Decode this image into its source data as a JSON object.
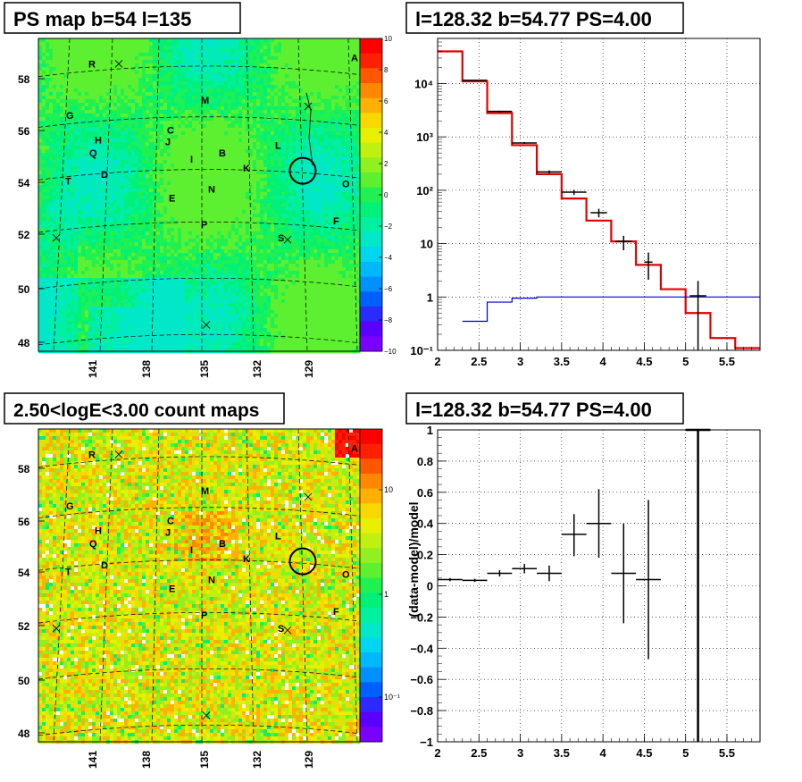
{
  "panels": {
    "ps_map": {
      "title": "PS map b=54 l=135",
      "y_ticks": [
        "58",
        "56",
        "54",
        "52",
        "50",
        "48"
      ],
      "x_ticks": [
        "141",
        "138",
        "135",
        "132",
        "129"
      ],
      "colorbar_ticks": [
        "10",
        "8",
        "6",
        "4",
        "2",
        "0",
        "−2",
        "−4",
        "−6",
        "−8",
        "−10"
      ],
      "colorbar_range": [
        -10,
        10
      ],
      "source_labels": [
        "R",
        "A",
        "M",
        "G",
        "C",
        "H",
        "J",
        "Q",
        "I",
        "B",
        "L",
        "K",
        "D",
        "T",
        "N",
        "O",
        "E",
        "F",
        "P",
        "S"
      ]
    },
    "count_map": {
      "title": "2.50<logE<3.00 count maps",
      "y_ticks": [
        "58",
        "56",
        "54",
        "52",
        "50",
        "48"
      ],
      "x_ticks": [
        "141",
        "138",
        "135",
        "132",
        "129"
      ],
      "colorbar_ticks": [
        "10",
        "1",
        "10⁻¹"
      ],
      "colorbar_scale": "log",
      "source_labels": [
        "R",
        "A",
        "M",
        "G",
        "C",
        "H",
        "J",
        "Q",
        "I",
        "B",
        "L",
        "K",
        "D",
        "T",
        "N",
        "O",
        "E",
        "F",
        "P",
        "S"
      ]
    },
    "spectrum": {
      "title": "l=128.32 b=54.77 PS=4.00"
    },
    "residual": {
      "title": "l=128.32 b=54.77 PS=4.00"
    }
  },
  "chart_data": [
    {
      "type": "heatmap",
      "title": "PS map b=54 l=135",
      "xlabel": "",
      "ylabel": "",
      "x_ticks": [
        141,
        138,
        135,
        132,
        129
      ],
      "y_ticks": [
        58,
        56,
        54,
        52,
        50,
        48
      ],
      "zlim": [
        -10,
        10
      ],
      "colorbar": "rainbow",
      "note_circle": {
        "l": 128.32,
        "b": 54.77
      }
    },
    {
      "type": "line",
      "title": "l=128.32 b=54.77 PS=4.00",
      "xlim": [
        2,
        5.9
      ],
      "ylim": [
        0.1,
        70000
      ],
      "yscale": "log",
      "x_ticks": [
        2,
        2.5,
        3,
        3.5,
        4,
        4.5,
        5,
        5.5
      ],
      "y_ticks": [
        "10⁻¹",
        "1",
        "10",
        "10²",
        "10³",
        "10⁴"
      ],
      "grid": true,
      "series": [
        {
          "style": "step",
          "color": "#e00000",
          "edges": [
            2.0,
            2.3,
            2.6,
            2.9,
            3.2,
            3.5,
            3.8,
            4.1,
            4.4,
            4.7,
            5.0,
            5.3,
            5.6,
            5.9
          ],
          "values": [
            40000,
            11000,
            2800,
            700,
            200,
            70,
            27,
            11,
            4,
            1.4,
            0.5,
            0.17,
            0.11
          ]
        },
        {
          "style": "step",
          "color": "#0000cc",
          "edges": [
            2.3,
            2.6,
            2.9,
            3.2,
            5.9
          ],
          "values": [
            0.35,
            0.8,
            0.95,
            1.0
          ]
        },
        {
          "style": "errorbar",
          "color": "#000000",
          "x": [
            2.45,
            2.75,
            3.05,
            3.35,
            3.65,
            3.95,
            4.25,
            4.55,
            5.15
          ],
          "xerr": [
            0.15,
            0.15,
            0.15,
            0.15,
            0.15,
            0.1,
            0.1,
            0.05,
            0.1
          ],
          "y": [
            11500,
            3000,
            770,
            220,
            92,
            38,
            11,
            4.5,
            1.05
          ],
          "ylo": [
            11300,
            2900,
            740,
            205,
            82,
            31,
            7.5,
            2.1,
            0.1
          ],
          "yhi": [
            11700,
            3100,
            800,
            235,
            102,
            45,
            14,
            6.8,
            2.0
          ]
        }
      ]
    },
    {
      "type": "heatmap",
      "title": "2.50<logE<3.00 count maps",
      "xlabel": "",
      "ylabel": "",
      "x_ticks": [
        141,
        138,
        135,
        132,
        129
      ],
      "y_ticks": [
        58,
        56,
        54,
        52,
        50,
        48
      ],
      "zscale": "log",
      "colorbar_ticks": [
        "10",
        "1",
        "10⁻¹"
      ],
      "note_circle": {
        "l": 128.32,
        "b": 54.77
      }
    },
    {
      "type": "scatter",
      "title": "l=128.32 b=54.77 PS=4.00",
      "xlabel": "",
      "ylabel": "(data-model)/model",
      "xlim": [
        2,
        5.9
      ],
      "ylim": [
        -1,
        1
      ],
      "x_ticks": [
        2,
        2.5,
        3,
        3.5,
        4,
        4.5,
        5,
        5.5
      ],
      "y_ticks": [
        1,
        0.8,
        0.6,
        0.4,
        0.2,
        0,
        -0.2,
        -0.4,
        -0.6,
        -0.8,
        -1
      ],
      "grid": true,
      "series": [
        {
          "style": "errorbar",
          "x": [
            2.15,
            2.45,
            2.75,
            3.05,
            3.35,
            3.65,
            3.95,
            4.25,
            4.55,
            5.15
          ],
          "xerr": [
            0.15,
            0.15,
            0.15,
            0.15,
            0.15,
            0.15,
            0.15,
            0.15,
            0.15,
            0.15
          ],
          "y": [
            0.04,
            0.035,
            0.08,
            0.11,
            0.08,
            0.33,
            0.4,
            0.08,
            0.04,
            1.0
          ],
          "ylo": [
            0.03,
            0.025,
            0.06,
            0.08,
            0.03,
            0.19,
            0.18,
            -0.24,
            -0.47,
            -1.0
          ],
          "yhi": [
            0.05,
            0.045,
            0.1,
            0.14,
            0.13,
            0.46,
            0.62,
            0.4,
            0.55,
            1.0
          ]
        }
      ]
    }
  ]
}
